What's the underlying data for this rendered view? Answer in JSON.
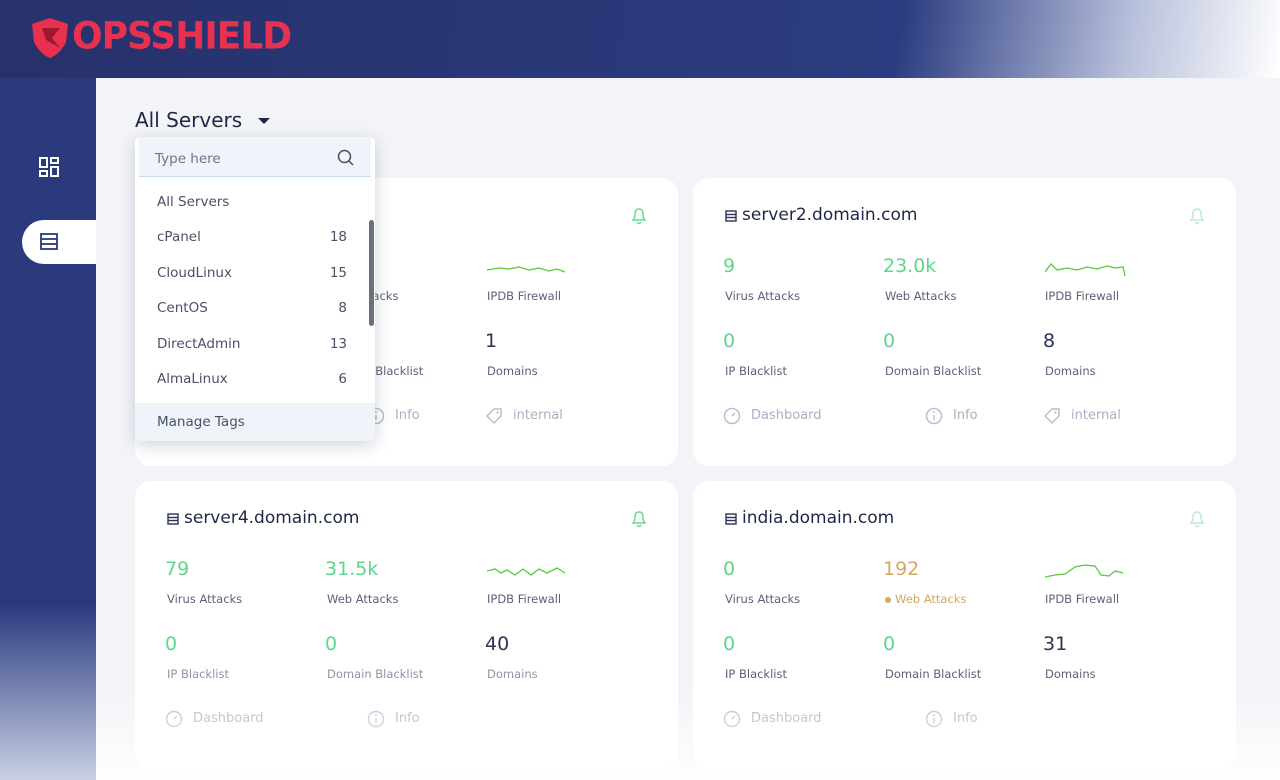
{
  "logo": "OPSSHIELD",
  "server_filter": {
    "label": "All Servers",
    "search_placeholder": "Type here",
    "items": [
      {
        "name": "All Servers"
      },
      {
        "name": "cPanel",
        "count": 18
      },
      {
        "name": "CloudLinux",
        "count": 15
      },
      {
        "name": "CentOS",
        "count": 8
      },
      {
        "name": "DirectAdmin",
        "count": 13
      },
      {
        "name": "AlmaLinux",
        "count": 6
      }
    ],
    "footer": "Manage Tags"
  },
  "cards": [
    {
      "metrics": [
        null,
        {
          "label": "Web Attacks"
        },
        null,
        {
          "label": "Domain Blacklist"
        },
        {
          "value": 1,
          "label": "Domains"
        }
      ],
      "firewall_label": "IPDB Firewall",
      "footer": [
        null,
        "Info",
        "internal"
      ]
    },
    {
      "title": "server2.domain.com",
      "metrics": [
        {
          "value": 9,
          "label": "Virus Attacks"
        },
        {
          "value": "23.0k",
          "label": "Web Attacks"
        },
        {
          "value": 0,
          "label": "IP Blacklist"
        },
        {
          "value": 0,
          "label": "Domain Blacklist"
        },
        {
          "value": 8,
          "label": "Domains"
        }
      ],
      "firewall_label": "IPDB Firewall",
      "footer": [
        "Dashboard",
        "Info",
        "internal"
      ]
    },
    {
      "title": "server4.domain.com",
      "metrics": [
        {
          "value": 79,
          "label": "Virus Attacks"
        },
        {
          "value": "31.5k",
          "label": "Web Attacks"
        },
        {
          "value": 0,
          "label": "IP Blacklist"
        },
        {
          "value": 0,
          "label": "Domain Blacklist"
        },
        {
          "value": 40,
          "label": "Domains"
        }
      ],
      "firewall_label": "IPDB Firewall",
      "footer": [
        "Dashboard",
        "Info"
      ]
    },
    {
      "title": "india.domain.com",
      "metrics": [
        {
          "value": 0,
          "label": "Virus Attacks"
        },
        {
          "value": 192,
          "label": "Web Attacks",
          "color": "#d6a75e"
        },
        {
          "value": 0,
          "label": "IP Blacklist"
        },
        {
          "value": 0,
          "label": "Domain Blacklist"
        },
        {
          "value": 31,
          "label": "Domains"
        }
      ],
      "firewall_label": "IPDB Firewall",
      "footer": [
        "Dashboard",
        "Info"
      ]
    }
  ]
}
